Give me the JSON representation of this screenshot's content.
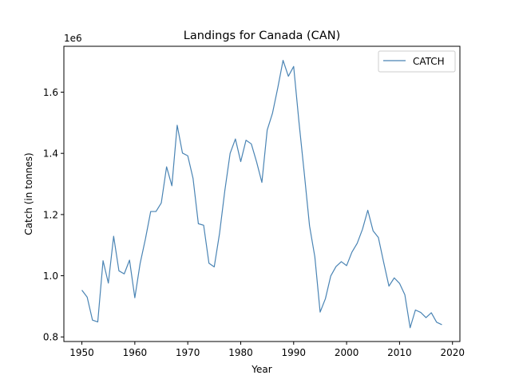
{
  "chart_data": {
    "type": "line",
    "title": "Landings for Canada (CAN)",
    "xlabel": "Year",
    "ylabel": "Catch (in tonnes)",
    "y_offset_label": "1e6",
    "y_multiplier": 1000000,
    "xlim": [
      1946.6,
      2021.4
    ],
    "ylim": [
      785000,
      1750000
    ],
    "xticks": [
      1950,
      1960,
      1970,
      1980,
      1990,
      2000,
      2010,
      2020
    ],
    "yticks": [
      0.8,
      1.0,
      1.2,
      1.4,
      1.6
    ],
    "grid": false,
    "legend_position": "top-right",
    "series_color": "#4a84b4",
    "series": [
      {
        "name": "CATCH",
        "x": [
          1950,
          1951,
          1952,
          1953,
          1954,
          1955,
          1956,
          1957,
          1958,
          1959,
          1960,
          1961,
          1962,
          1963,
          1964,
          1965,
          1966,
          1967,
          1968,
          1969,
          1970,
          1971,
          1972,
          1973,
          1974,
          1975,
          1976,
          1977,
          1978,
          1979,
          1980,
          1981,
          1982,
          1983,
          1984,
          1985,
          1986,
          1987,
          1988,
          1989,
          1990,
          1991,
          1992,
          1993,
          1994,
          1995,
          1996,
          1997,
          1998,
          1999,
          2000,
          2001,
          2002,
          2003,
          2004,
          2005,
          2006,
          2007,
          2008,
          2009,
          2010,
          2011,
          2012,
          2013,
          2014,
          2015,
          2016,
          2017,
          2018
        ],
        "values": [
          953000,
          930000,
          855000,
          849000,
          1049000,
          976000,
          1129000,
          1016000,
          1006000,
          1051000,
          928000,
          1040000,
          1120000,
          1210000,
          1210000,
          1238000,
          1356000,
          1294000,
          1492000,
          1401000,
          1392000,
          1318000,
          1170000,
          1165000,
          1041000,
          1029000,
          1138000,
          1278000,
          1400000,
          1447000,
          1373000,
          1443000,
          1431000,
          1372000,
          1305000,
          1476000,
          1531000,
          1614000,
          1704000,
          1652000,
          1684000,
          1503000,
          1336000,
          1163000,
          1062000,
          881000,
          925000,
          999000,
          1030000,
          1046000,
          1033000,
          1077000,
          1106000,
          1152000,
          1214000,
          1147000,
          1125000,
          1044000,
          966000,
          993000,
          975000,
          938000,
          830000,
          888000,
          880000,
          863000,
          879000,
          848000,
          840000
        ]
      }
    ]
  }
}
